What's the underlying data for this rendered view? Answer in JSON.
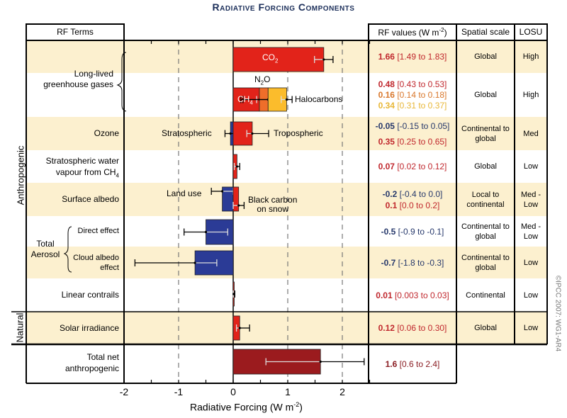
{
  "title": "Radiative Forcing Components",
  "headers": {
    "rf_terms": "RF Terms",
    "rf_values": "RF values (W m",
    "rf_values_sup": "-2",
    "rf_values_close": ")",
    "spatial_scale": "Spatial scale",
    "losu": "LOSU"
  },
  "groups": {
    "anthropogenic": "Anthropogenic",
    "natural": "Natural"
  },
  "copyright": "©IPCC 2007: WG1-AR4",
  "colors": {
    "row_tan": "#fcf0cf",
    "red": "#e2231a",
    "orange": "#ef6e2a",
    "yellow": "#fbbc2c",
    "blue": "#2b3b96",
    "dark_red": "#9b1b1e",
    "value_red": "#c0272d",
    "value_orange": "#d9772b",
    "value_yellow": "#e8b737",
    "value_blue": "#26386b",
    "value_darkred": "#8a1c22"
  },
  "rows": [
    {
      "term": "",
      "spatial": "Global",
      "losu": "High",
      "values": [
        {
          "main": "1.66",
          "range": "[1.49 to 1.83]",
          "color": "red"
        }
      ]
    },
    {
      "term": "",
      "spatial": "Global",
      "losu": "High",
      "values": [
        {
          "main": "0.48",
          "range": "[0.43 to 0.53]",
          "color": "red"
        },
        {
          "main": "0.16",
          "range": "[0.14 to 0.18]",
          "color": "orange"
        },
        {
          "main": "0.34",
          "range": "[0.31 to 0.37]",
          "color": "yellow"
        }
      ]
    },
    {
      "term": "Ozone",
      "spatial": "Continental to global",
      "losu": "Med",
      "values": [
        {
          "main": "-0.05",
          "range": "[-0.15 to 0.05]",
          "color": "blue"
        },
        {
          "main": "0.35",
          "range": "[0.25 to 0.65]",
          "color": "red"
        }
      ]
    },
    {
      "term": "Stratospheric water vapour from CH4",
      "spatial": "Global",
      "losu": "Low",
      "values": [
        {
          "main": "0.07",
          "range": "[0.02 to 0.12]",
          "color": "red"
        }
      ]
    },
    {
      "term": "Surface albedo",
      "spatial": "Local to continental",
      "losu": "Med - Low",
      "values": [
        {
          "main": "-0.2",
          "range": "[-0.4 to 0.0]",
          "color": "blue"
        },
        {
          "main": "0.1",
          "range": "[0.0 to 0.2]",
          "color": "red"
        }
      ]
    },
    {
      "term": "Direct effect",
      "spatial": "Continental to global",
      "losu": "Med - Low",
      "values": [
        {
          "main": "-0.5",
          "range": "[-0.9 to -0.1]",
          "color": "blue"
        }
      ]
    },
    {
      "term": "Cloud albedo effect",
      "spatial": "Continental to global",
      "losu": "Low",
      "values": [
        {
          "main": "-0.7",
          "range": "[-1.8 to -0.3]",
          "color": "blue"
        }
      ]
    },
    {
      "term": "Linear contrails",
      "spatial": "Continental",
      "losu": "Low",
      "values": [
        {
          "main": "0.01",
          "range": "[0.003 to 0.03]",
          "color": "red"
        }
      ]
    },
    {
      "term": "Solar irradiance",
      "spatial": "Global",
      "losu": "Low",
      "values": [
        {
          "main": "0.12",
          "range": "[0.06 to 0.30]",
          "color": "red"
        }
      ]
    },
    {
      "term": "Total net anthropogenic",
      "spatial": "",
      "losu": "",
      "values": [
        {
          "main": "1.6",
          "range": "[0.6 to 2.4]",
          "color": "darkred"
        }
      ]
    }
  ],
  "term_labels": {
    "long_lived_1": "Long-lived",
    "long_lived_2": "greenhouse gases",
    "ozone": "Ozone",
    "strat_water_1": "Stratospheric water",
    "strat_water_2": "vapour from CH",
    "strat_water_sub": "4",
    "surface_albedo": "Surface albedo",
    "total_aerosol_1": "Total",
    "total_aerosol_2": "Aerosol",
    "direct_effect": "Direct effect",
    "cloud_albedo_1": "Cloud albedo",
    "cloud_albedo_2": "effect",
    "linear_contrails": "Linear contrails",
    "solar_irradiance": "Solar irradiance",
    "total_net_1": "Total net",
    "total_net_2": "anthropogenic"
  },
  "bar_labels": {
    "co2": "CO",
    "co2_sub": "2",
    "ch4": "CH",
    "ch4_sub": "4",
    "n2o": "N",
    "n2o_sub": "2",
    "n2o_o": "O",
    "halocarbons": "Halocarbons",
    "stratospheric": "Stratospheric",
    "tropospheric": "Tropospheric",
    "land_use": "Land use",
    "black_carbon_1": "Black carbon",
    "black_carbon_2": "on snow"
  },
  "chart_data": {
    "type": "bar",
    "orientation": "horizontal",
    "title": "Radiative Forcing Components",
    "xlabel": "Radiative Forcing  (W m",
    "xlabel_sup": "-2",
    "xlabel_close": ")",
    "xlim": [
      -2,
      2.5
    ],
    "xticks": [
      -2,
      -1,
      0,
      1,
      2
    ],
    "xtick_labels": [
      "-2",
      "-1",
      "0",
      "1",
      "2"
    ],
    "minor_tick_step": 0.5,
    "dashed_gridlines": [
      -1,
      1,
      2
    ],
    "grid": true,
    "series": [
      {
        "name": "CO2",
        "row": 0,
        "start": 0,
        "value": 1.66,
        "low": 1.49,
        "high": 1.83,
        "color": "red"
      },
      {
        "name": "CH4",
        "row": 1,
        "start": 0,
        "value": 0.48,
        "low": 0.43,
        "high": 0.53,
        "color": "red"
      },
      {
        "name": "N2O",
        "row": 1,
        "start": 0.48,
        "value": 0.16,
        "low": 0.14,
        "high": 0.18,
        "color": "orange"
      },
      {
        "name": "Halocarbons",
        "row": 1,
        "start": 0.64,
        "value": 0.34,
        "low": 0.31,
        "high": 0.37,
        "color": "yellow",
        "stack_low": 0.88,
        "stack_high": 1.08
      },
      {
        "name": "Ozone Stratospheric",
        "row": 2,
        "start": 0,
        "value": -0.05,
        "low": -0.15,
        "high": 0.05,
        "color": "blue"
      },
      {
        "name": "Ozone Tropospheric",
        "row": 2,
        "start": 0,
        "value": 0.35,
        "low": 0.25,
        "high": 0.65,
        "color": "red"
      },
      {
        "name": "Stratospheric water vapour from CH4",
        "row": 3,
        "start": 0,
        "value": 0.07,
        "low": 0.02,
        "high": 0.12,
        "color": "red"
      },
      {
        "name": "Surface albedo Land use",
        "row": 4,
        "start": 0,
        "value": -0.2,
        "low": -0.4,
        "high": 0.0,
        "color": "blue"
      },
      {
        "name": "Surface albedo Black carbon on snow",
        "row": 4,
        "start": 0,
        "value": 0.1,
        "low": 0.0,
        "high": 0.2,
        "color": "red"
      },
      {
        "name": "Aerosol Direct effect",
        "row": 5,
        "start": 0,
        "value": -0.5,
        "low": -0.9,
        "high": -0.1,
        "color": "blue"
      },
      {
        "name": "Aerosol Cloud albedo effect",
        "row": 6,
        "start": 0,
        "value": -0.7,
        "low": -1.8,
        "high": -0.3,
        "color": "blue"
      },
      {
        "name": "Linear contrails",
        "row": 7,
        "start": 0,
        "value": 0.01,
        "low": 0.003,
        "high": 0.03,
        "color": "red"
      },
      {
        "name": "Solar irradiance",
        "row": 8,
        "start": 0,
        "value": 0.12,
        "low": 0.06,
        "high": 0.3,
        "color": "red"
      },
      {
        "name": "Total net anthropogenic",
        "row": 9,
        "start": 0,
        "value": 1.6,
        "low": 0.6,
        "high": 2.4,
        "color": "darkred"
      }
    ]
  }
}
